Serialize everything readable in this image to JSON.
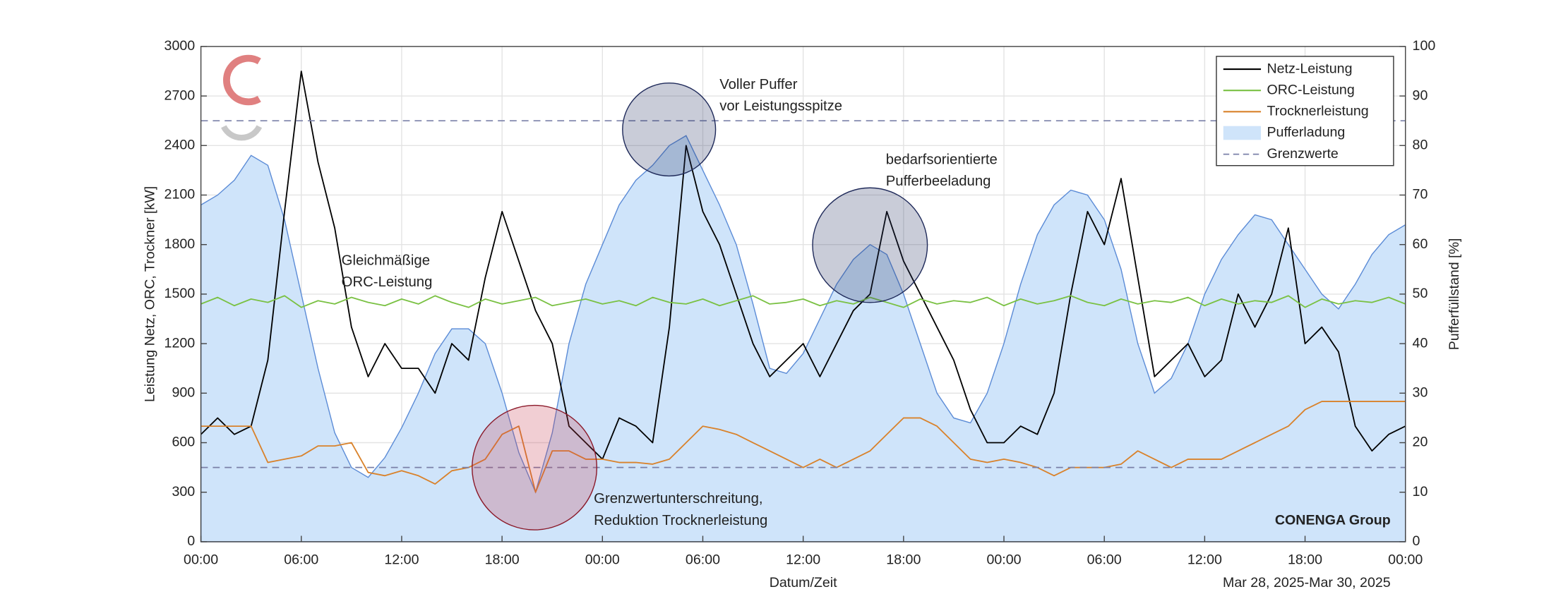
{
  "chart_data": {
    "type": "line",
    "x": [
      0,
      1,
      2,
      3,
      4,
      5,
      6,
      7,
      8,
      9,
      10,
      11,
      12,
      13,
      14,
      15,
      16,
      17,
      18,
      19,
      20,
      21,
      22,
      23,
      24,
      25,
      26,
      27,
      28,
      29,
      30,
      31,
      32,
      33,
      34,
      35,
      36,
      37,
      38,
      39,
      40,
      41,
      42,
      43,
      44,
      45,
      46,
      47,
      48,
      49,
      50,
      51,
      52,
      53,
      54,
      55,
      56,
      57,
      58,
      59,
      60,
      61,
      62,
      63,
      64,
      65,
      66,
      67,
      68,
      69,
      70,
      71,
      72
    ],
    "xlim": [
      0,
      72
    ],
    "xticks": [
      {
        "value": 0,
        "label": "00:00"
      },
      {
        "value": 6,
        "label": "06:00"
      },
      {
        "value": 12,
        "label": "12:00"
      },
      {
        "value": 18,
        "label": "18:00"
      },
      {
        "value": 24,
        "label": "00:00"
      },
      {
        "value": 30,
        "label": "06:00"
      },
      {
        "value": 36,
        "label": "12:00"
      },
      {
        "value": 42,
        "label": "18:00"
      },
      {
        "value": 48,
        "label": "00:00"
      },
      {
        "value": 54,
        "label": "06:00"
      },
      {
        "value": 60,
        "label": "12:00"
      },
      {
        "value": 66,
        "label": "18:00"
      },
      {
        "value": 72,
        "label": "00:00"
      }
    ],
    "x_label": "Datum/Zeit",
    "x_range_label": "Mar 28, 2025-Mar 30, 2025",
    "y_label": "Leistung Netz, ORC, Trockner [kW]",
    "ylim": [
      0,
      3000
    ],
    "yticks": [
      0,
      300,
      600,
      900,
      1200,
      1500,
      1800,
      2100,
      2400,
      2700,
      3000
    ],
    "y2_label": "Pufferfüllstand [%]",
    "y2lim": [
      0,
      100
    ],
    "y2ticks": [
      0,
      10,
      20,
      30,
      40,
      50,
      60,
      70,
      80,
      90,
      100
    ],
    "grid": true,
    "legend": "top-right",
    "series": [
      {
        "name": "Pufferladung",
        "color": "#cfe4fa",
        "line_color": "#5b8bd6",
        "kind": "area",
        "axis": "y2",
        "values": [
          68,
          70,
          73,
          78,
          76,
          65,
          50,
          35,
          22,
          15,
          13,
          17,
          23,
          30,
          38,
          43,
          43,
          40,
          30,
          18,
          10,
          22,
          40,
          52,
          60,
          68,
          73,
          76,
          80,
          82,
          75,
          68,
          60,
          48,
          35,
          34,
          38,
          45,
          52,
          57,
          60,
          58,
          50,
          40,
          30,
          25,
          24,
          30,
          40,
          52,
          62,
          68,
          71,
          70,
          65,
          55,
          40,
          30,
          33,
          40,
          50,
          57,
          62,
          66,
          65,
          60,
          55,
          50,
          47,
          52,
          58,
          62,
          64
        ]
      },
      {
        "name": "Netz-Leistung",
        "color": "#000000",
        "kind": "line",
        "axis": "y",
        "values": [
          650,
          750,
          650,
          700,
          1100,
          2000,
          2850,
          2300,
          1900,
          1300,
          1000,
          1200,
          1050,
          1050,
          900,
          1200,
          1100,
          1600,
          2000,
          1700,
          1400,
          1200,
          700,
          600,
          500,
          750,
          700,
          600,
          1300,
          2400,
          2000,
          1800,
          1500,
          1200,
          1000,
          1100,
          1200,
          1000,
          1200,
          1400,
          1500,
          2000,
          1700,
          1500,
          1300,
          1100,
          800,
          600,
          600,
          700,
          650,
          900,
          1500,
          2000,
          1800,
          2200,
          1600,
          1000,
          1100,
          1200,
          1000,
          1100,
          1500,
          1300,
          1500,
          1900,
          1200,
          1300,
          1150,
          700,
          550,
          650,
          700
        ]
      },
      {
        "name": "ORC-Leistung",
        "color": "#7ac143",
        "kind": "line",
        "axis": "y",
        "values": [
          1440,
          1480,
          1430,
          1470,
          1450,
          1490,
          1420,
          1460,
          1440,
          1480,
          1450,
          1430,
          1470,
          1440,
          1490,
          1450,
          1420,
          1470,
          1440,
          1460,
          1480,
          1430,
          1450,
          1470,
          1440,
          1460,
          1430,
          1480,
          1450,
          1440,
          1470,
          1430,
          1460,
          1490,
          1440,
          1450,
          1470,
          1430,
          1460,
          1440,
          1480,
          1450,
          1420,
          1470,
          1440,
          1460,
          1450,
          1480,
          1430,
          1470,
          1440,
          1460,
          1490,
          1450,
          1430,
          1470,
          1440,
          1460,
          1450,
          1480,
          1430,
          1470,
          1440,
          1460,
          1450,
          1490,
          1420,
          1470,
          1440,
          1460,
          1450,
          1480,
          1440
        ]
      },
      {
        "name": "Trocknerleistung",
        "color": "#d9822b",
        "kind": "line",
        "axis": "y",
        "values": [
          700,
          700,
          700,
          700,
          480,
          500,
          520,
          580,
          580,
          600,
          420,
          400,
          430,
          400,
          350,
          430,
          450,
          500,
          650,
          700,
          300,
          550,
          550,
          500,
          500,
          480,
          480,
          470,
          500,
          600,
          700,
          680,
          650,
          600,
          550,
          500,
          450,
          500,
          450,
          500,
          550,
          650,
          750,
          750,
          700,
          600,
          500,
          480,
          500,
          480,
          450,
          400,
          450,
          450,
          450,
          470,
          550,
          500,
          450,
          500,
          500,
          500,
          550,
          600,
          650,
          700,
          800,
          850,
          850,
          850,
          850,
          850,
          850
        ]
      }
    ],
    "reference_lines": {
      "name": "Grenzwerte",
      "color": "#7a80a8",
      "values": [
        450,
        85
      ],
      "axes": [
        "y",
        "y2"
      ]
    },
    "annotations": [
      {
        "lines": [
          "Voller Puffer",
          "vor Leistungsspitze"
        ],
        "color": "#1f3a7a"
      },
      {
        "lines": [
          "bedarfsorientierte",
          "Pufferbeeladung"
        ],
        "color": "#1f3a7a"
      },
      {
        "lines": [
          "Gleichmäßige",
          "ORC-Leistung"
        ],
        "color": "#7ac143"
      },
      {
        "lines": [
          "Grenzwertunterschreitung,",
          "Reduktion Trocknerleistung"
        ],
        "color": "#c0182a"
      }
    ],
    "watermark": "CONENGA Group"
  }
}
